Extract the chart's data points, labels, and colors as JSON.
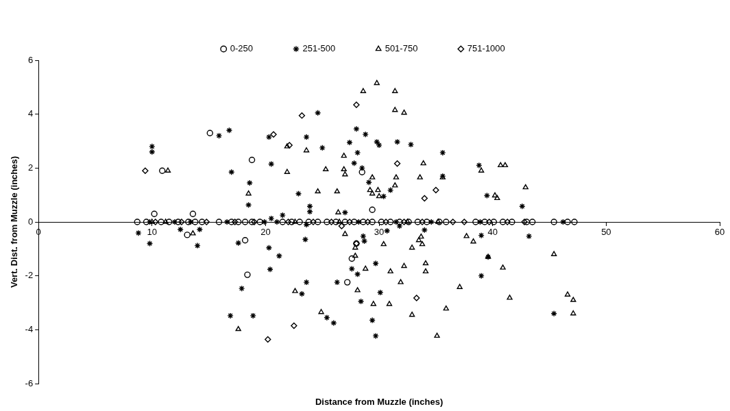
{
  "chart_data": {
    "type": "scatter",
    "xlabel": "Distance from Muzzle (inches)",
    "ylabel": "Vert. Dist. from Muzzle (inches)",
    "xlim": [
      0,
      60
    ],
    "xticks": [
      0,
      10,
      20,
      30,
      40,
      50,
      60
    ],
    "ylim": [
      -6,
      6
    ],
    "yticks": [
      -6,
      -4,
      -2,
      0,
      2,
      4,
      6
    ],
    "grid": false,
    "legend": "top",
    "series": [
      {
        "name": "0-250",
        "color": "#000000",
        "marker": "circle",
        "x": [
          10.2,
          10.9,
          13.6,
          13.1,
          15.1,
          18.8,
          18.2,
          18.4,
          28.5,
          29.4,
          27.2,
          27.6,
          28.0,
          8.7,
          9.5,
          10.8,
          11.5,
          12.3,
          13.2,
          13.8,
          14.4,
          15.9,
          17,
          17.6,
          18.2,
          18.8,
          19.5,
          21.5,
          22.3,
          23,
          23.8,
          24.6,
          25.4,
          26.2,
          27,
          27.8,
          28.6,
          29.4,
          30.2,
          31,
          31.8,
          32.6,
          33.4,
          34.2,
          35.3,
          35.9,
          38.5,
          39.3,
          40.1,
          40.9,
          41.7,
          43,
          43.5,
          45.4,
          46.6,
          47.2
        ],
        "values": [
          0.3,
          1.9,
          0.3,
          -0.48,
          3.3,
          2.3,
          -0.68,
          -1.96,
          1.85,
          0.45,
          -2.24,
          -1.36,
          -0.8,
          0,
          0,
          0,
          0,
          0,
          0,
          0,
          0,
          0,
          0,
          0,
          0,
          0,
          0,
          0,
          0,
          0,
          0,
          0,
          0,
          0,
          0,
          0,
          0,
          0,
          0,
          0,
          0,
          0,
          0,
          0,
          0,
          0,
          0,
          0,
          0,
          0,
          0,
          0,
          0,
          0,
          0,
          0
        ]
      },
      {
        "name": "251-500",
        "color": "#000000",
        "marker": "cross",
        "x": [
          10.0,
          10.0,
          15.9,
          16.8,
          17.0,
          18.6,
          18.5,
          20.3,
          20.5,
          20.5,
          21.5,
          24.6,
          28.0,
          28.8,
          23.6,
          27.4,
          29.8,
          30.0,
          31.6,
          32.8,
          25.0,
          28.1,
          35.6,
          27.8,
          28.5,
          35.6,
          29.1,
          31.0,
          30.4,
          22.9,
          23.9,
          23.9,
          27.0,
          38.8,
          39.5,
          42.6,
          8.8,
          9.8,
          12.5,
          14.2,
          14.0,
          17.6,
          20.3,
          21.2,
          20.4,
          17.9,
          16.9,
          18.9,
          23.6,
          31.8,
          23.5,
          28.6,
          28.7,
          30.7,
          34.0,
          29.7,
          27.6,
          28.1,
          23.6,
          26.3,
          23.2,
          30.1,
          28.4,
          25.4,
          26.0,
          29.4,
          29.7,
          39.0,
          43.2,
          39.6,
          39.0,
          45.4,
          9.8,
          12.0,
          13.4,
          16.6,
          19.9,
          21.0,
          28.2,
          31.5,
          34.6,
          38.9,
          46.2
        ],
        "values": [
          2.8,
          2.6,
          3.2,
          3.4,
          1.85,
          1.45,
          0.63,
          3.15,
          2.15,
          0.13,
          0.25,
          4.05,
          3.45,
          3.25,
          3.15,
          2.95,
          2.97,
          2.85,
          2.97,
          2.87,
          2.75,
          2.57,
          2.57,
          2.18,
          2.0,
          1.7,
          1.47,
          1.18,
          0.95,
          1.05,
          0.58,
          0.38,
          0.35,
          2.1,
          0.98,
          0.58,
          -0.41,
          -0.8,
          -0.28,
          -0.28,
          -0.88,
          -0.78,
          -0.96,
          -1.26,
          -1.76,
          -2.47,
          -3.48,
          -3.48,
          -0.1,
          -0.15,
          -0.65,
          -0.53,
          -0.71,
          -0.33,
          -0.3,
          -1.54,
          -1.74,
          -1.94,
          -2.24,
          -2.24,
          -2.67,
          -2.62,
          -2.95,
          -3.55,
          -3.75,
          -3.65,
          -4.23,
          -0.5,
          -0.53,
          -1.3,
          -2.0,
          -3.4,
          0,
          0,
          0,
          0,
          0,
          0,
          0,
          0,
          0,
          0,
          0
        ]
      },
      {
        "name": "501-750",
        "color": "#000000",
        "marker": "triangle",
        "x": [
          11.4,
          18.5,
          21.9,
          21.9,
          29.8,
          28.6,
          31.4,
          31.4,
          32.2,
          23.6,
          26.9,
          33.9,
          25.3,
          26.9,
          27.0,
          29.4,
          31.5,
          33.6,
          35.6,
          31.4,
          29.2,
          29.9,
          29.4,
          30.0,
          24.6,
          26.3,
          26.4,
          39.0,
          40.7,
          41.1,
          40.2,
          40.4,
          42.9,
          13.6,
          17.6,
          27.0,
          30.4,
          33.7,
          33.5,
          33.8,
          32.9,
          27.9,
          27.9,
          32.2,
          34.1,
          34.1,
          28.8,
          31.0,
          31.9,
          22.6,
          28.1,
          29.5,
          30.9,
          32.9,
          35.9,
          24.9,
          35.1,
          37.7,
          38.3,
          45.4,
          39.6,
          40.9,
          37.1,
          41.5,
          46.6,
          47.1,
          47.1,
          10.0,
          11.2,
          22.6,
          26.5,
          32.5,
          35.2
        ],
        "values": [
          1.9,
          1.05,
          2.8,
          1.85,
          5.15,
          4.85,
          4.85,
          4.15,
          4.05,
          2.65,
          2.45,
          2.17,
          1.95,
          1.95,
          1.76,
          1.65,
          1.65,
          1.65,
          1.65,
          1.35,
          1.18,
          1.18,
          1.05,
          0.95,
          1.13,
          1.13,
          0.35,
          1.9,
          2.1,
          2.1,
          0.98,
          0.88,
          1.28,
          -0.43,
          -3.98,
          -0.45,
          -0.83,
          -0.55,
          -0.68,
          -0.83,
          -0.96,
          -0.96,
          -1.26,
          -1.64,
          -1.54,
          -1.84,
          -1.74,
          -1.84,
          -2.24,
          -2.57,
          -2.54,
          -3.05,
          -3.05,
          -3.45,
          -3.22,
          -3.35,
          -4.23,
          -0.53,
          -0.73,
          -1.2,
          -1.3,
          -1.7,
          -2.42,
          -2.82,
          -2.7,
          -2.9,
          -3.4,
          0,
          0,
          0,
          0,
          0,
          0
        ]
      },
      {
        "name": "751-1000",
        "color": "#000000",
        "marker": "diamond",
        "x": [
          9.4,
          20.7,
          22.1,
          28.0,
          23.2,
          31.6,
          35.0,
          34.0,
          20.2,
          26.7,
          28.0,
          33.3,
          22.5,
          10.3,
          12.6,
          14.8,
          17.3,
          19,
          22,
          24.2,
          25.8,
          27.4,
          29,
          30.6,
          32.2,
          33.8,
          36.5,
          37.5,
          39.7,
          41.3,
          42.8
        ],
        "values": [
          1.9,
          3.25,
          2.85,
          4.35,
          3.95,
          2.17,
          1.18,
          0.88,
          -4.36,
          -0.15,
          -0.8,
          -2.82,
          -3.85,
          0,
          0,
          0,
          0,
          0,
          0,
          0,
          0,
          0,
          0,
          0,
          0,
          0,
          0,
          0,
          0,
          0,
          0
        ]
      }
    ]
  }
}
